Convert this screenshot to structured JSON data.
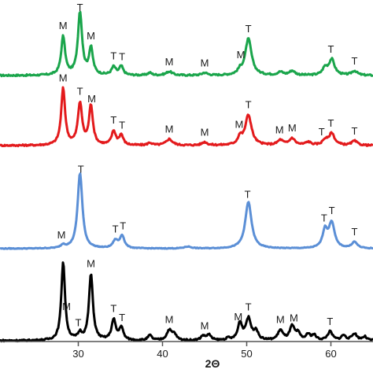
{
  "chart_data": {
    "type": "line",
    "xlabel": "2Θ",
    "xticks": [
      30,
      40,
      50,
      60
    ],
    "xlim": [
      20.7,
      65
    ],
    "series": [
      {
        "color": "#1aa54b",
        "baseline": 0.0,
        "noise": 0.25,
        "peaks": [
          {
            "x": 28.2,
            "h": 6.1,
            "w": 0.28
          },
          {
            "x": 30.2,
            "h": 10.0,
            "w": 0.3
          },
          {
            "x": 31.5,
            "h": 4.2,
            "w": 0.28
          },
          {
            "x": 34.2,
            "h": 1.3,
            "w": 0.3
          },
          {
            "x": 35.1,
            "h": 1.4,
            "w": 0.28
          },
          {
            "x": 38.5,
            "h": 0.4,
            "w": 0.3
          },
          {
            "x": 40.8,
            "h": 0.6,
            "w": 0.45
          },
          {
            "x": 45.0,
            "h": 0.4,
            "w": 0.4
          },
          {
            "x": 49.2,
            "h": 0.6,
            "w": 0.3
          },
          {
            "x": 50.2,
            "h": 5.8,
            "w": 0.45
          },
          {
            "x": 54.0,
            "h": 0.5,
            "w": 0.4
          },
          {
            "x": 55.4,
            "h": 0.7,
            "w": 0.4
          },
          {
            "x": 59.3,
            "h": 1.1,
            "w": 0.35
          },
          {
            "x": 60.1,
            "h": 2.5,
            "w": 0.4
          },
          {
            "x": 62.8,
            "h": 0.7,
            "w": 0.4
          }
        ],
        "labels": [
          {
            "x": 28.2,
            "text": "M"
          },
          {
            "x": 30.2,
            "text": "T"
          },
          {
            "x": 31.5,
            "text": "M"
          },
          {
            "x": 34.2,
            "text": "T"
          },
          {
            "x": 35.2,
            "text": "T"
          },
          {
            "x": 40.8,
            "text": "M"
          },
          {
            "x": 45.0,
            "text": "M"
          },
          {
            "x": 49.3,
            "text": "M"
          },
          {
            "x": 50.2,
            "text": "T"
          },
          {
            "x": 60.0,
            "text": "T"
          },
          {
            "x": 62.8,
            "text": "T"
          }
        ]
      },
      {
        "color": "#e31a1c",
        "baseline": 0.0,
        "noise": 0.25,
        "peaks": [
          {
            "x": 28.2,
            "h": 9.0,
            "w": 0.28
          },
          {
            "x": 30.2,
            "h": 6.6,
            "w": 0.3
          },
          {
            "x": 31.5,
            "h": 6.2,
            "w": 0.28
          },
          {
            "x": 34.2,
            "h": 2.2,
            "w": 0.3
          },
          {
            "x": 35.1,
            "h": 1.6,
            "w": 0.28
          },
          {
            "x": 38.5,
            "h": 0.4,
            "w": 0.3
          },
          {
            "x": 40.8,
            "h": 1.0,
            "w": 0.45
          },
          {
            "x": 45.0,
            "h": 0.5,
            "w": 0.4
          },
          {
            "x": 49.2,
            "h": 1.2,
            "w": 0.3
          },
          {
            "x": 50.2,
            "h": 4.8,
            "w": 0.45
          },
          {
            "x": 54.0,
            "h": 0.8,
            "w": 0.4
          },
          {
            "x": 55.4,
            "h": 1.1,
            "w": 0.4
          },
          {
            "x": 57.3,
            "h": 0.5,
            "w": 0.4
          },
          {
            "x": 59.3,
            "h": 0.8,
            "w": 0.35
          },
          {
            "x": 60.1,
            "h": 1.9,
            "w": 0.4
          },
          {
            "x": 62.8,
            "h": 0.7,
            "w": 0.4
          }
        ],
        "labels": [
          {
            "x": 28.2,
            "text": "M"
          },
          {
            "x": 30.2,
            "text": "T"
          },
          {
            "x": 31.6,
            "text": "M"
          },
          {
            "x": 34.2,
            "text": "T"
          },
          {
            "x": 35.2,
            "text": "T"
          },
          {
            "x": 40.8,
            "text": "M"
          },
          {
            "x": 45.0,
            "text": "M"
          },
          {
            "x": 49.1,
            "text": "M"
          },
          {
            "x": 50.2,
            "text": "T"
          },
          {
            "x": 53.9,
            "text": "M"
          },
          {
            "x": 55.4,
            "text": "M"
          },
          {
            "x": 58.9,
            "text": "T"
          },
          {
            "x": 60.0,
            "text": "T"
          },
          {
            "x": 62.8,
            "text": "T"
          }
        ]
      },
      {
        "color": "#5b8fd6",
        "baseline": 0.0,
        "noise": 0.12,
        "peaks": [
          {
            "x": 28.2,
            "h": 0.5,
            "w": 0.3
          },
          {
            "x": 30.2,
            "h": 12.0,
            "w": 0.34
          },
          {
            "x": 34.4,
            "h": 1.2,
            "w": 0.35
          },
          {
            "x": 35.2,
            "h": 2.0,
            "w": 0.32
          },
          {
            "x": 43.0,
            "h": 0.3,
            "w": 0.5
          },
          {
            "x": 50.2,
            "h": 7.4,
            "w": 0.45
          },
          {
            "x": 59.3,
            "h": 2.8,
            "w": 0.35
          },
          {
            "x": 60.1,
            "h": 4.0,
            "w": 0.4
          },
          {
            "x": 62.8,
            "h": 1.0,
            "w": 0.4
          }
        ],
        "labels": [
          {
            "x": 28.0,
            "text": "M"
          },
          {
            "x": 30.3,
            "text": "T"
          },
          {
            "x": 34.4,
            "text": "T"
          },
          {
            "x": 35.3,
            "text": "T"
          },
          {
            "x": 50.1,
            "text": "T"
          },
          {
            "x": 59.2,
            "text": "T"
          },
          {
            "x": 60.1,
            "text": "T"
          },
          {
            "x": 62.8,
            "text": "T"
          }
        ]
      },
      {
        "color": "#000000",
        "baseline": 0.0,
        "noise": 0.25,
        "peaks": [
          {
            "x": 28.2,
            "h": 12.5,
            "w": 0.26
          },
          {
            "x": 30.2,
            "h": 1.0,
            "w": 0.28
          },
          {
            "x": 31.5,
            "h": 10.5,
            "w": 0.28
          },
          {
            "x": 34.2,
            "h": 3.2,
            "w": 0.3
          },
          {
            "x": 35.1,
            "h": 2.0,
            "w": 0.28
          },
          {
            "x": 38.5,
            "h": 0.8,
            "w": 0.28
          },
          {
            "x": 40.8,
            "h": 1.6,
            "w": 0.35
          },
          {
            "x": 41.4,
            "h": 0.9,
            "w": 0.3
          },
          {
            "x": 44.8,
            "h": 0.7,
            "w": 0.3
          },
          {
            "x": 45.5,
            "h": 0.9,
            "w": 0.3
          },
          {
            "x": 47.8,
            "h": 0.3,
            "w": 0.3
          },
          {
            "x": 49.2,
            "h": 2.7,
            "w": 0.3
          },
          {
            "x": 50.2,
            "h": 3.4,
            "w": 0.38
          },
          {
            "x": 51.1,
            "h": 1.4,
            "w": 0.3
          },
          {
            "x": 54.0,
            "h": 1.6,
            "w": 0.35
          },
          {
            "x": 55.4,
            "h": 2.2,
            "w": 0.35
          },
          {
            "x": 56.1,
            "h": 1.0,
            "w": 0.3
          },
          {
            "x": 57.3,
            "h": 0.9,
            "w": 0.3
          },
          {
            "x": 58.0,
            "h": 0.8,
            "w": 0.3
          },
          {
            "x": 59.9,
            "h": 1.4,
            "w": 0.35
          },
          {
            "x": 61.5,
            "h": 0.8,
            "w": 0.3
          },
          {
            "x": 62.8,
            "h": 1.1,
            "w": 0.35
          },
          {
            "x": 64.0,
            "h": 0.6,
            "w": 0.3
          }
        ],
        "labels": [
          {
            "x": 28.6,
            "text": "M"
          },
          {
            "x": 30.0,
            "text": "T"
          },
          {
            "x": 31.5,
            "text": "M"
          },
          {
            "x": 34.2,
            "text": "T"
          },
          {
            "x": 35.2,
            "text": "T"
          },
          {
            "x": 40.8,
            "text": "M"
          },
          {
            "x": 45.0,
            "text": "M"
          },
          {
            "x": 49.0,
            "text": "M"
          },
          {
            "x": 50.2,
            "text": "T"
          },
          {
            "x": 54.0,
            "text": "M"
          },
          {
            "x": 55.6,
            "text": "M"
          },
          {
            "x": 59.9,
            "text": "T"
          }
        ]
      }
    ]
  }
}
